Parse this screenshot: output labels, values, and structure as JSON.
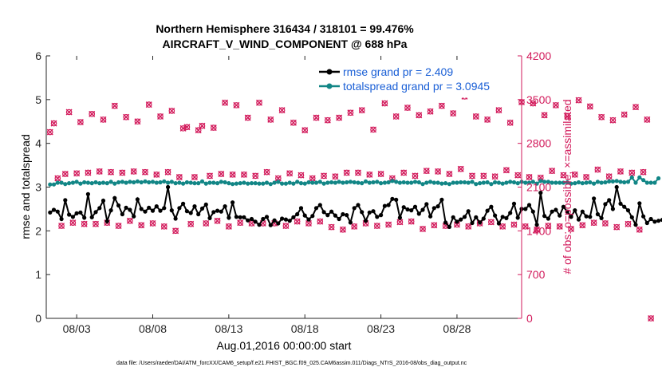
{
  "chart_data": {
    "type": "line",
    "title": "Northern Hemisphere 316434 / 318101 = 99.476%",
    "subtitle": "AIRCRAFT_V_WIND_COMPONENT @ 688 hPa",
    "xlabel": "Aug.01,2016 00:00:00 start",
    "ylabel_left": "rmse and totalspread",
    "ylabel_right": "# of obs: o=possible; ×=assimilated",
    "footnote": "data file: /Users/raeder/DAI/ATM_forcXX/CAM6_setup/f.e21.FHIST_BGC.f09_025.CAM6assim.011/Diags_NTrS_2016-08/obs_diag_output.nc",
    "xlim": [
      1.0,
      32.25
    ],
    "ylim_left": [
      0,
      6
    ],
    "ylim_right": [
      0,
      4200
    ],
    "x_ticks": [
      3,
      8,
      13,
      18,
      23,
      28
    ],
    "x_tick_labels": [
      "08/03",
      "08/08",
      "08/13",
      "08/18",
      "08/23",
      "08/28"
    ],
    "y_ticks_left": [
      0,
      1,
      2,
      3,
      4,
      5,
      6
    ],
    "y_tick_labels_left": [
      "0",
      "1",
      "2",
      "3",
      "4",
      "5",
      "6"
    ],
    "y_ticks_right": [
      0,
      700,
      1400,
      2100,
      2800,
      3500,
      4200
    ],
    "y_tick_labels_right": [
      "0",
      "700",
      "1400",
      "2100",
      "2800",
      "3500",
      "4200"
    ],
    "legend": [
      "rmse grand pr = 2.409",
      "totalspread grand pr = 3.0945"
    ],
    "legend_position": "top-right",
    "x_start": 1.25,
    "x_step": 0.25,
    "series": [
      {
        "name": "rmse grand pr = 2.409",
        "axis": "left",
        "color": "#000000",
        "marker": "circle",
        "values": [
          2.42,
          2.48,
          2.44,
          2.27,
          2.7,
          2.37,
          2.32,
          2.4,
          2.42,
          2.3,
          2.84,
          2.31,
          2.43,
          2.52,
          2.69,
          2.22,
          2.47,
          2.75,
          2.58,
          2.38,
          2.53,
          2.48,
          2.33,
          2.72,
          2.5,
          2.44,
          2.53,
          2.46,
          2.56,
          2.46,
          2.52,
          3.0,
          2.47,
          2.28,
          2.52,
          2.62,
          2.45,
          2.41,
          2.56,
          2.38,
          2.51,
          2.6,
          2.29,
          2.43,
          2.46,
          2.44,
          2.56,
          2.3,
          2.65,
          2.32,
          2.31,
          2.31,
          2.24,
          2.27,
          2.21,
          2.14,
          2.27,
          2.32,
          2.13,
          2.24,
          2.17,
          2.28,
          2.26,
          2.23,
          2.31,
          2.38,
          2.52,
          2.35,
          2.26,
          2.34,
          2.52,
          2.59,
          2.43,
          2.36,
          2.44,
          2.35,
          2.27,
          2.38,
          2.36,
          2.19,
          2.52,
          2.59,
          2.43,
          2.23,
          2.42,
          2.45,
          2.32,
          2.36,
          2.57,
          2.59,
          2.73,
          2.71,
          2.3,
          2.54,
          2.49,
          2.47,
          2.55,
          2.39,
          2.48,
          2.61,
          2.33,
          2.52,
          2.56,
          2.71,
          2.19,
          2.09,
          2.31,
          2.21,
          2.26,
          2.32,
          2.45,
          2.18,
          2.31,
          2.19,
          2.28,
          2.46,
          2.55,
          2.35,
          2.17,
          2.32,
          2.29,
          2.41,
          2.62,
          2.3,
          2.5,
          2.5,
          2.59,
          2.44,
          2.14,
          2.87,
          2.34,
          2.28,
          2.44,
          2.48,
          2.35,
          2.55,
          2.44,
          2.32,
          2.47,
          2.26,
          2.44,
          2.33,
          2.32,
          2.74,
          2.38,
          2.29,
          2.61,
          2.7,
          2.5,
          3.0,
          2.62,
          2.55,
          2.47,
          2.31,
          2.14,
          2.63,
          2.33,
          2.18,
          2.27,
          2.21,
          2.23,
          2.25,
          2.18
        ]
      },
      {
        "name": "totalspread grand pr = 3.0945",
        "axis": "left",
        "color": "#128686",
        "marker": "circle",
        "values": [
          3.06,
          3.06,
          3.1,
          3.1,
          3.07,
          3.09,
          3.1,
          3.12,
          3.08,
          3.11,
          3.1,
          3.09,
          3.11,
          3.09,
          3.1,
          3.09,
          3.12,
          3.08,
          3.11,
          3.12,
          3.1,
          3.12,
          3.11,
          3.13,
          3.11,
          3.13,
          3.11,
          3.12,
          3.1,
          3.11,
          3.13,
          3.1,
          3.12,
          3.09,
          3.1,
          3.08,
          3.11,
          3.1,
          3.09,
          3.09,
          3.13,
          3.08,
          3.1,
          3.1,
          3.09,
          3.12,
          3.11,
          3.09,
          3.07,
          3.08,
          3.09,
          3.1,
          3.08,
          3.09,
          3.09,
          3.08,
          3.08,
          3.1,
          3.07,
          3.1,
          3.12,
          3.08,
          3.08,
          3.1,
          3.08,
          3.12,
          3.09,
          3.08,
          3.11,
          3.1,
          3.1,
          3.12,
          3.08,
          3.1,
          3.11,
          3.1,
          3.12,
          3.1,
          3.11,
          3.12,
          3.11,
          3.1,
          3.09,
          3.13,
          3.1,
          3.11,
          3.12,
          3.09,
          3.1,
          3.11,
          3.14,
          3.12,
          3.1,
          3.11,
          3.1,
          3.1,
          3.12,
          3.11,
          3.07,
          3.1,
          3.12,
          3.1,
          3.1,
          3.08,
          3.09,
          3.07,
          3.1,
          3.1,
          3.11,
          3.11,
          3.1,
          3.12,
          3.07,
          3.09,
          3.1,
          3.11,
          3.07,
          3.11,
          3.1,
          3.08,
          3.1,
          3.12,
          3.11,
          3.09,
          3.12,
          3.1,
          3.1,
          3.12,
          3.08,
          3.14,
          3.12,
          3.12,
          3.1,
          3.1,
          3.1,
          3.1,
          3.11,
          3.08,
          3.09,
          3.11,
          3.09,
          3.1,
          3.11,
          3.08,
          3.12,
          3.1,
          3.11,
          3.13,
          3.13,
          3.14,
          3.12,
          3.11,
          3.12,
          3.22,
          3.1,
          3.22,
          3.16,
          3.1,
          3.1,
          3.1,
          3.2
        ]
      }
    ],
    "obs_counts": {
      "axis": "right",
      "color": "#d21a5b",
      "legend_hint": "o=possible; x=assimilated",
      "values": [
        2980,
        3120,
        2240,
        1480,
        2310,
        3300,
        1530,
        2320,
        3140,
        1510,
        2330,
        3270,
        1510,
        2350,
        3180,
        1530,
        2340,
        3400,
        1480,
        2330,
        3220,
        1560,
        2350,
        3150,
        1490,
        2340,
        3420,
        1520,
        2300,
        3230,
        1470,
        2340,
        3320,
        1400,
        2260,
        3040,
        3060,
        1510,
        2260,
        3010,
        3080,
        1520,
        2280,
        3050,
        1560,
        2310,
        3450,
        1470,
        2300,
        3410,
        1530,
        2300,
        3210,
        1520,
        2280,
        3450,
        1520,
        2340,
        3180,
        1520,
        2240,
        3330,
        1480,
        2320,
        3130,
        1550,
        2290,
        3010,
        1520,
        2240,
        3210,
        1550,
        2280,
        3170,
        1460,
        2270,
        3210,
        1420,
        2330,
        3290,
        1470,
        2330,
        3330,
        1520,
        2300,
        3020,
        1480,
        2310,
        3440,
        1500,
        2240,
        3230,
        1540,
        2330,
        3370,
        1550,
        2280,
        3250,
        1430,
        2360,
        3310,
        1490,
        2350,
        3400,
        1480,
        2310,
        3280,
        1500,
        2390,
        3550,
        1470,
        2280,
        3230,
        1520,
        2280,
        3180,
        1540,
        2270,
        3330,
        1470,
        2370,
        3130,
        1500,
        2290,
        3460,
        1470,
        2260,
        3440,
        1420,
        2250,
        3250,
        1480,
        2360,
        3410,
        1470,
        2290,
        3230,
        1430,
        2300,
        3490,
        1490,
        2260,
        3390,
        1530,
        2380,
        3220,
        1520,
        2270,
        3170,
        1460,
        2350,
        3260,
        1510,
        2330,
        3380,
        1420,
        2340,
        3180,
        0
      ]
    }
  }
}
